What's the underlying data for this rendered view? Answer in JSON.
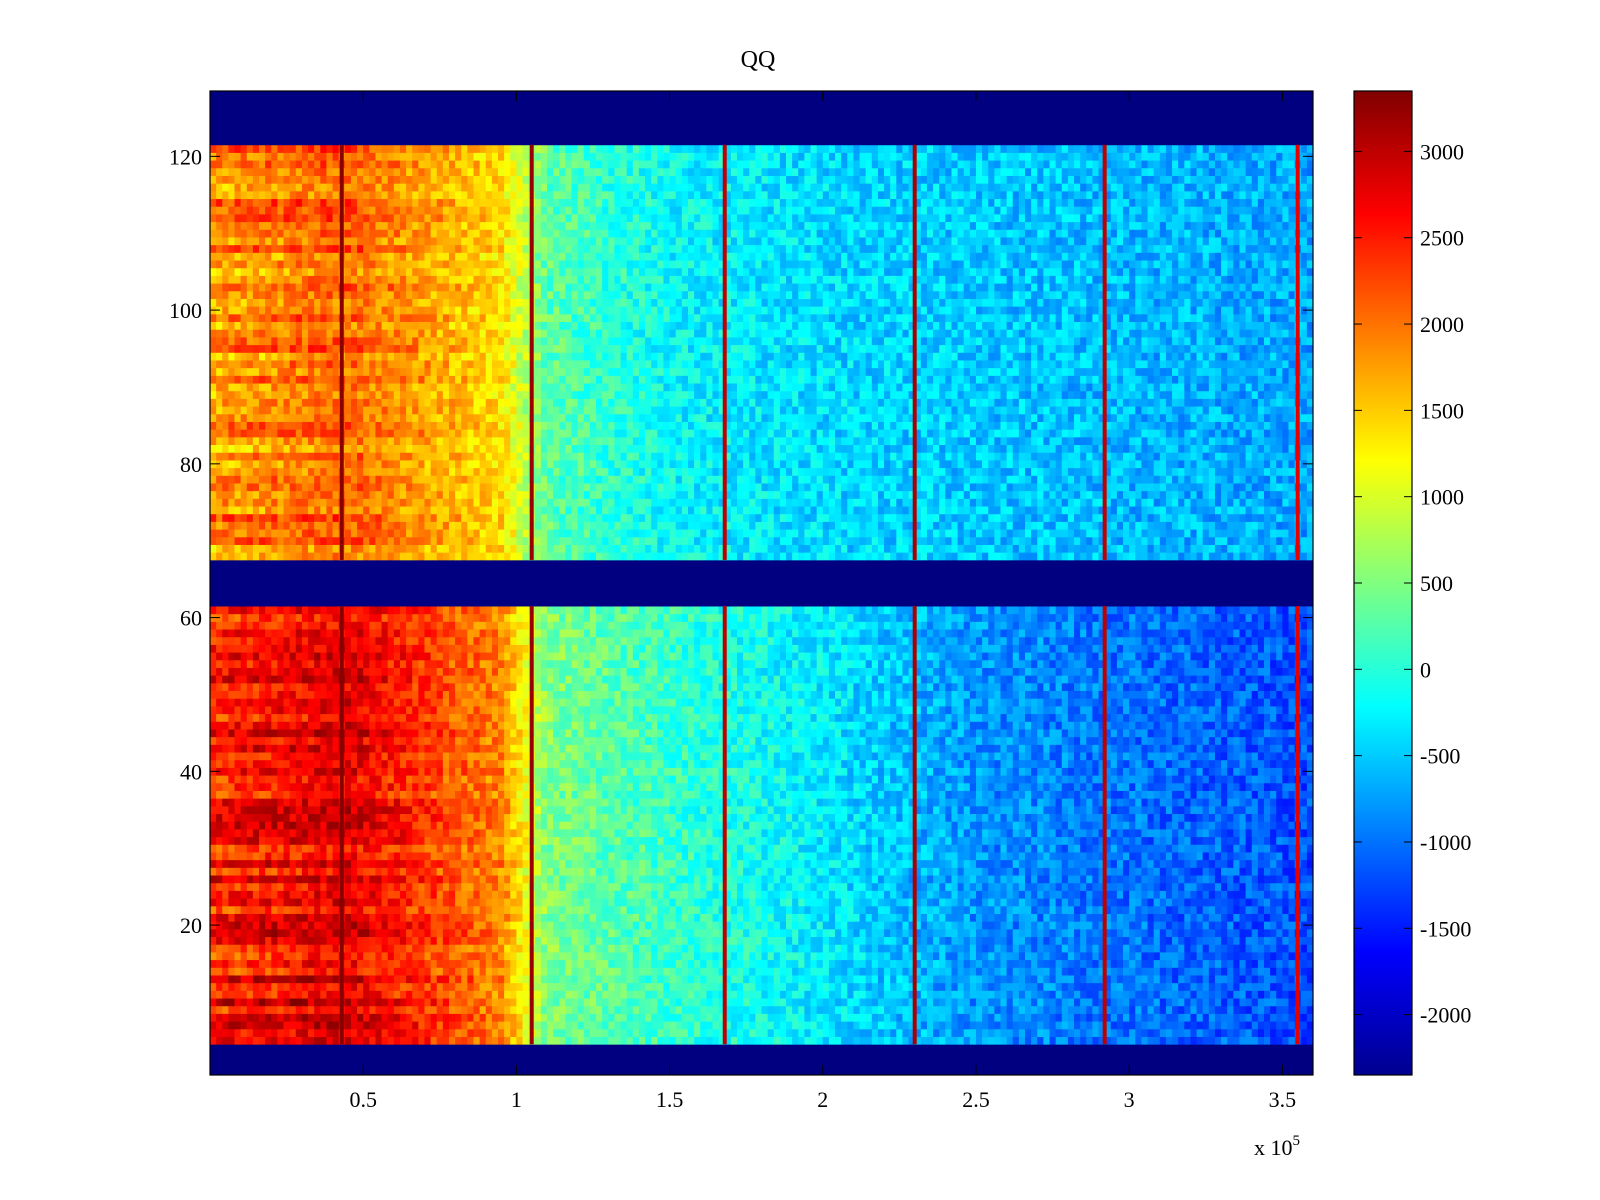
{
  "chart_data": {
    "type": "heatmap",
    "title": "QQ",
    "xlabel": "",
    "ylabel": "",
    "x_exponent_label": "x 10",
    "x_exponent_power": "5",
    "xlim": [
      0,
      3.6
    ],
    "ylim": [
      0.5,
      128.5
    ],
    "x_ticks": [
      0.5,
      1,
      1.5,
      2,
      2.5,
      3,
      3.5
    ],
    "x_tick_labels": [
      "0.5",
      "1",
      "1.5",
      "2",
      "2.5",
      "3",
      "3.5"
    ],
    "y_ticks": [
      20,
      40,
      60,
      80,
      100,
      120
    ],
    "y_tick_labels": [
      "20",
      "40",
      "60",
      "80",
      "100",
      "120"
    ],
    "grid": false,
    "colormap": "jet",
    "colorbar": {
      "clim": [
        -2350,
        3350
      ],
      "ticks": [
        3000,
        2500,
        2000,
        1500,
        1000,
        500,
        0,
        -500,
        -1000,
        -1500,
        -2000
      ],
      "tick_labels": [
        "3000",
        "2500",
        "2000",
        "1500",
        "1000",
        "500",
        "0",
        "-500",
        "-1000",
        "-1500",
        "-2000"
      ],
      "location": "right"
    },
    "masked_row_bands": [
      {
        "rows": [
          1,
          4
        ],
        "value": -2350
      },
      {
        "rows": [
          62,
          67
        ],
        "value": -2350
      },
      {
        "rows": [
          122,
          128
        ],
        "value": -2350
      }
    ],
    "vertical_stripes": [
      {
        "x": 0.43,
        "value": 3300
      },
      {
        "x": 1.05,
        "value": 3200
      },
      {
        "x": 1.68,
        "value": 3000
      },
      {
        "x": 2.3,
        "value": 3100
      },
      {
        "x": 2.92,
        "value": 3000
      },
      {
        "x": 3.55,
        "value": 2800
      }
    ],
    "approx_profile": [
      {
        "x": 0.0,
        "upper_block": 1800,
        "lower_block": 2500
      },
      {
        "x": 0.45,
        "upper_block": 2100,
        "lower_block": 2800
      },
      {
        "x": 0.95,
        "upper_block": 1400,
        "lower_block": 1900
      },
      {
        "x": 1.1,
        "upper_block": 300,
        "lower_block": 500
      },
      {
        "x": 1.5,
        "upper_block": -200,
        "lower_block": 100
      },
      {
        "x": 2.0,
        "upper_block": -400,
        "lower_block": -300
      },
      {
        "x": 2.5,
        "upper_block": -500,
        "lower_block": -800
      },
      {
        "x": 3.0,
        "upper_block": -600,
        "lower_block": -1000
      },
      {
        "x": 3.6,
        "upper_block": -700,
        "lower_block": -1200
      }
    ]
  }
}
